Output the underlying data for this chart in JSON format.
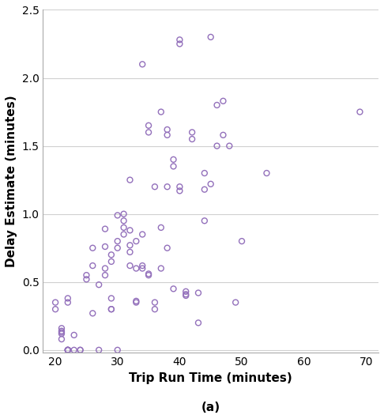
{
  "x": [
    20,
    20,
    21,
    21,
    21,
    21,
    21,
    22,
    22,
    22,
    22,
    22,
    22,
    22,
    23,
    23,
    24,
    24,
    25,
    25,
    26,
    26,
    26,
    27,
    27,
    28,
    28,
    28,
    28,
    29,
    29,
    29,
    29,
    29,
    30,
    30,
    30,
    30,
    31,
    31,
    31,
    31,
    32,
    32,
    32,
    32,
    32,
    33,
    33,
    33,
    33,
    34,
    34,
    34,
    34,
    35,
    35,
    35,
    35,
    36,
    36,
    36,
    37,
    37,
    37,
    38,
    38,
    38,
    38,
    39,
    39,
    39,
    40,
    40,
    40,
    40,
    41,
    41,
    41,
    42,
    42,
    43,
    43,
    44,
    44,
    44,
    45,
    45,
    46,
    46,
    47,
    47,
    48,
    49,
    50,
    54,
    69
  ],
  "y": [
    0.35,
    0.3,
    0.08,
    0.12,
    0.13,
    0.14,
    0.16,
    0.0,
    0.0,
    0.0,
    0.0,
    0.0,
    0.35,
    0.38,
    0.0,
    0.11,
    0.0,
    0.0,
    0.55,
    0.52,
    0.27,
    0.62,
    0.75,
    0.0,
    0.48,
    0.55,
    0.6,
    0.76,
    0.89,
    0.38,
    0.3,
    0.3,
    0.65,
    0.7,
    0.0,
    0.75,
    0.8,
    0.99,
    0.95,
    0.85,
    0.9,
    1.0,
    0.62,
    0.72,
    0.77,
    0.88,
    1.25,
    0.35,
    0.36,
    0.6,
    0.8,
    0.6,
    0.62,
    0.85,
    2.1,
    0.56,
    1.6,
    1.65,
    0.55,
    0.3,
    0.35,
    1.2,
    0.6,
    1.75,
    0.9,
    1.2,
    1.58,
    1.62,
    0.75,
    1.35,
    1.4,
    0.45,
    1.17,
    1.2,
    2.25,
    2.28,
    0.4,
    0.43,
    0.41,
    1.6,
    1.55,
    0.2,
    0.42,
    0.95,
    1.3,
    1.18,
    1.22,
    2.3,
    1.8,
    1.5,
    1.83,
    1.58,
    1.5,
    0.35,
    0.8,
    1.3,
    1.75
  ],
  "marker_color": "#9370BB",
  "marker_size": 5,
  "marker_linewidth": 1.0,
  "xlabel": "Trip Run Time (minutes)",
  "ylabel": "Delay Estimate (minutes)",
  "subtitle": "(a)",
  "xlim": [
    18,
    72
  ],
  "ylim": [
    -0.02,
    2.5
  ],
  "xticks": [
    20,
    30,
    40,
    50,
    60,
    70
  ],
  "yticks": [
    0.0,
    0.5,
    1.0,
    1.5,
    2.0,
    2.5
  ],
  "grid_color": "#d0d0d0",
  "bg_color": "#ffffff",
  "xlabel_fontsize": 11,
  "ylabel_fontsize": 11,
  "subtitle_fontsize": 11,
  "tick_fontsize": 10
}
